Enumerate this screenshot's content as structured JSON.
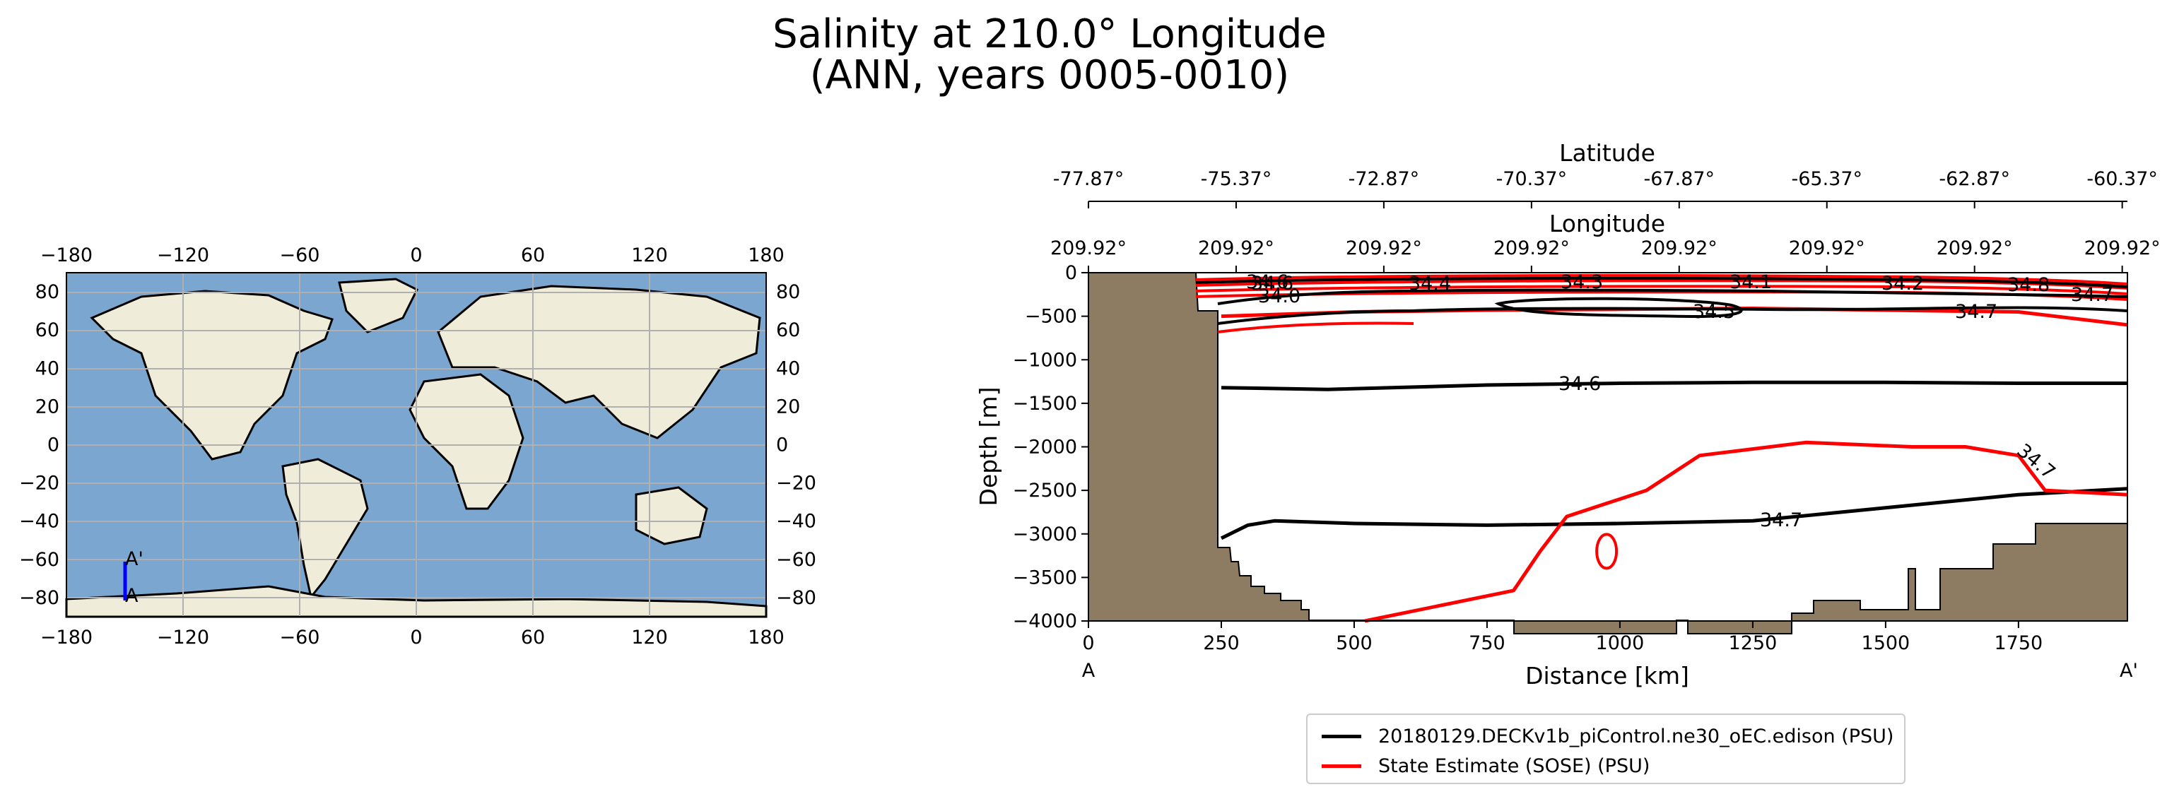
{
  "title_line1": "Salinity at 210.0° Longitude",
  "title_line2": "(ANN, years 0005-0010)",
  "colors": {
    "model": "#000000",
    "obs": "#ff0000",
    "land_map": "#efedd9",
    "ocean_map": "#7aa6cf",
    "topography": "#8d7b62",
    "transect": "#0000ff"
  },
  "map": {
    "x_ticks": [
      "−180",
      "−120",
      "−60",
      "0",
      "60",
      "120",
      "180"
    ],
    "y_ticks": [
      "80",
      "60",
      "40",
      "20",
      "0",
      "−20",
      "−40",
      "−60",
      "−80"
    ],
    "point_a": "A",
    "point_a_prime": "A'"
  },
  "chart_data": {
    "type": "line",
    "title": "Salinity at 210.0° Longitude (ANN, years 0005-0010)",
    "xlabel": "Distance [km]",
    "ylabel": "Depth [m]",
    "xlim": [
      0,
      1955
    ],
    "ylim": [
      -4000,
      0
    ],
    "x_ticks": [
      "0",
      "250",
      "500",
      "750",
      "1000",
      "1250",
      "1500",
      "1750"
    ],
    "y_ticks": [
      "0",
      "−500",
      "−1000",
      "−1500",
      "−2000",
      "−2500",
      "−3000",
      "−3500",
      "−4000"
    ],
    "start_label": "A",
    "end_label": "A'",
    "latitude_axis_label": "Latitude",
    "latitude_ticks": [
      "-77.87°",
      "-75.37°",
      "-72.87°",
      "-70.37°",
      "-67.87°",
      "-65.37°",
      "-62.87°",
      "-60.37°"
    ],
    "longitude_axis_label": "Longitude",
    "longitude_ticks": [
      "209.92°",
      "209.92°",
      "209.92°",
      "209.92°",
      "209.92°",
      "209.92°",
      "209.92°",
      "209.92°"
    ],
    "contour_labels": {
      "model": [
        "34.5",
        "34.6",
        "34.7"
      ],
      "obs": [
        "34.7",
        "34.7",
        "34.6",
        "34.4",
        "34.3",
        "34.1",
        "34.2",
        "34.0"
      ],
      "model_top": [
        "34.6",
        "34.8"
      ]
    },
    "series": [
      {
        "name": "model_34.6_contour",
        "x": [
          250,
          450,
          750,
          1000,
          1250,
          1500,
          1750,
          1955
        ],
        "y": [
          -1320,
          -1340,
          -1290,
          -1270,
          -1260,
          -1260,
          -1270,
          -1270
        ]
      },
      {
        "name": "model_34.7_contour",
        "x": [
          250,
          300,
          350,
          500,
          750,
          1000,
          1250,
          1500,
          1750,
          1955
        ],
        "y": [
          -3050,
          -2900,
          -2850,
          -2880,
          -2900,
          -2880,
          -2850,
          -2700,
          -2550,
          -2480
        ]
      },
      {
        "name": "obs_34.7_mid",
        "x": [
          250,
          500,
          750,
          1000,
          1250,
          1500,
          1750,
          1955
        ],
        "y": [
          -500,
          -450,
          -430,
          -420,
          -410,
          -430,
          -450,
          -600
        ]
      },
      {
        "name": "obs_34.7_deep",
        "x": [
          520,
          800,
          850,
          900,
          1050,
          1150,
          1350,
          1550,
          1650,
          1750,
          1800,
          1955
        ],
        "y": [
          -4000,
          -3650,
          -3200,
          -2800,
          -2500,
          -2100,
          -1950,
          -2000,
          -2000,
          -2100,
          -2500,
          -2550
        ]
      }
    ]
  },
  "legend": [
    {
      "label": "20180129.DECKv1b_piControl.ne30_oEC.edison (PSU)",
      "color": "#000000"
    },
    {
      "label": "State Estimate (SOSE) (PSU)",
      "color": "#ff0000"
    }
  ]
}
